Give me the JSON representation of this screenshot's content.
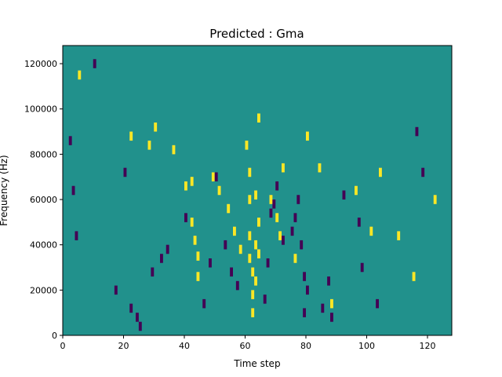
{
  "chart_data": {
    "type": "heatmap",
    "title": "Predicted : Gma",
    "xlabel": "Time step",
    "ylabel": "Frequency (Hz)",
    "xlim": [
      0,
      128
    ],
    "ylim": [
      0,
      128000
    ],
    "x_ticks": [
      0,
      20,
      40,
      60,
      80,
      100,
      120
    ],
    "y_ticks": [
      0,
      20000,
      40000,
      60000,
      80000,
      100000,
      120000
    ],
    "colors": {
      "low": "#440154",
      "mid": "#21918c",
      "high": "#fde725"
    },
    "background_value": 0,
    "cells_approx": {
      "high": [
        [
          5,
          115000
        ],
        [
          22,
          88000
        ],
        [
          28,
          84000
        ],
        [
          30,
          92000
        ],
        [
          36,
          82000
        ],
        [
          40,
          66000
        ],
        [
          42,
          68000
        ],
        [
          42,
          50000
        ],
        [
          43,
          42000
        ],
        [
          44,
          35000
        ],
        [
          44,
          26000
        ],
        [
          49,
          70000
        ],
        [
          51,
          64000
        ],
        [
          54,
          56000
        ],
        [
          56,
          46000
        ],
        [
          58,
          38000
        ],
        [
          60,
          84000
        ],
        [
          61,
          72000
        ],
        [
          61,
          60000
        ],
        [
          61,
          44000
        ],
        [
          61,
          34000
        ],
        [
          62,
          28000
        ],
        [
          62,
          18000
        ],
        [
          62,
          10000
        ],
        [
          63,
          62000
        ],
        [
          63,
          40000
        ],
        [
          63,
          24000
        ],
        [
          64,
          96000
        ],
        [
          64,
          50000
        ],
        [
          64,
          36000
        ],
        [
          68,
          60000
        ],
        [
          70,
          52000
        ],
        [
          71,
          44000
        ],
        [
          72,
          74000
        ],
        [
          76,
          34000
        ],
        [
          80,
          88000
        ],
        [
          84,
          74000
        ],
        [
          88,
          14000
        ],
        [
          96,
          64000
        ],
        [
          101,
          46000
        ],
        [
          104,
          72000
        ],
        [
          110,
          44000
        ],
        [
          115,
          26000
        ],
        [
          122,
          60000
        ]
      ],
      "low": [
        [
          2,
          86000
        ],
        [
          3,
          64000
        ],
        [
          4,
          44000
        ],
        [
          10,
          120000
        ],
        [
          17,
          20000
        ],
        [
          20,
          72000
        ],
        [
          22,
          12000
        ],
        [
          24,
          8000
        ],
        [
          25,
          4000
        ],
        [
          29,
          28000
        ],
        [
          32,
          34000
        ],
        [
          34,
          38000
        ],
        [
          40,
          52000
        ],
        [
          46,
          14000
        ],
        [
          48,
          32000
        ],
        [
          50,
          70000
        ],
        [
          53,
          40000
        ],
        [
          55,
          28000
        ],
        [
          57,
          22000
        ],
        [
          66,
          16000
        ],
        [
          67,
          32000
        ],
        [
          68,
          54000
        ],
        [
          69,
          58000
        ],
        [
          70,
          66000
        ],
        [
          72,
          42000
        ],
        [
          75,
          46000
        ],
        [
          76,
          52000
        ],
        [
          77,
          60000
        ],
        [
          78,
          40000
        ],
        [
          79,
          26000
        ],
        [
          79,
          10000
        ],
        [
          80,
          20000
        ],
        [
          85,
          12000
        ],
        [
          87,
          24000
        ],
        [
          88,
          8000
        ],
        [
          92,
          62000
        ],
        [
          97,
          50000
        ],
        [
          98,
          30000
        ],
        [
          103,
          14000
        ],
        [
          116,
          90000
        ],
        [
          118,
          72000
        ]
      ]
    }
  }
}
